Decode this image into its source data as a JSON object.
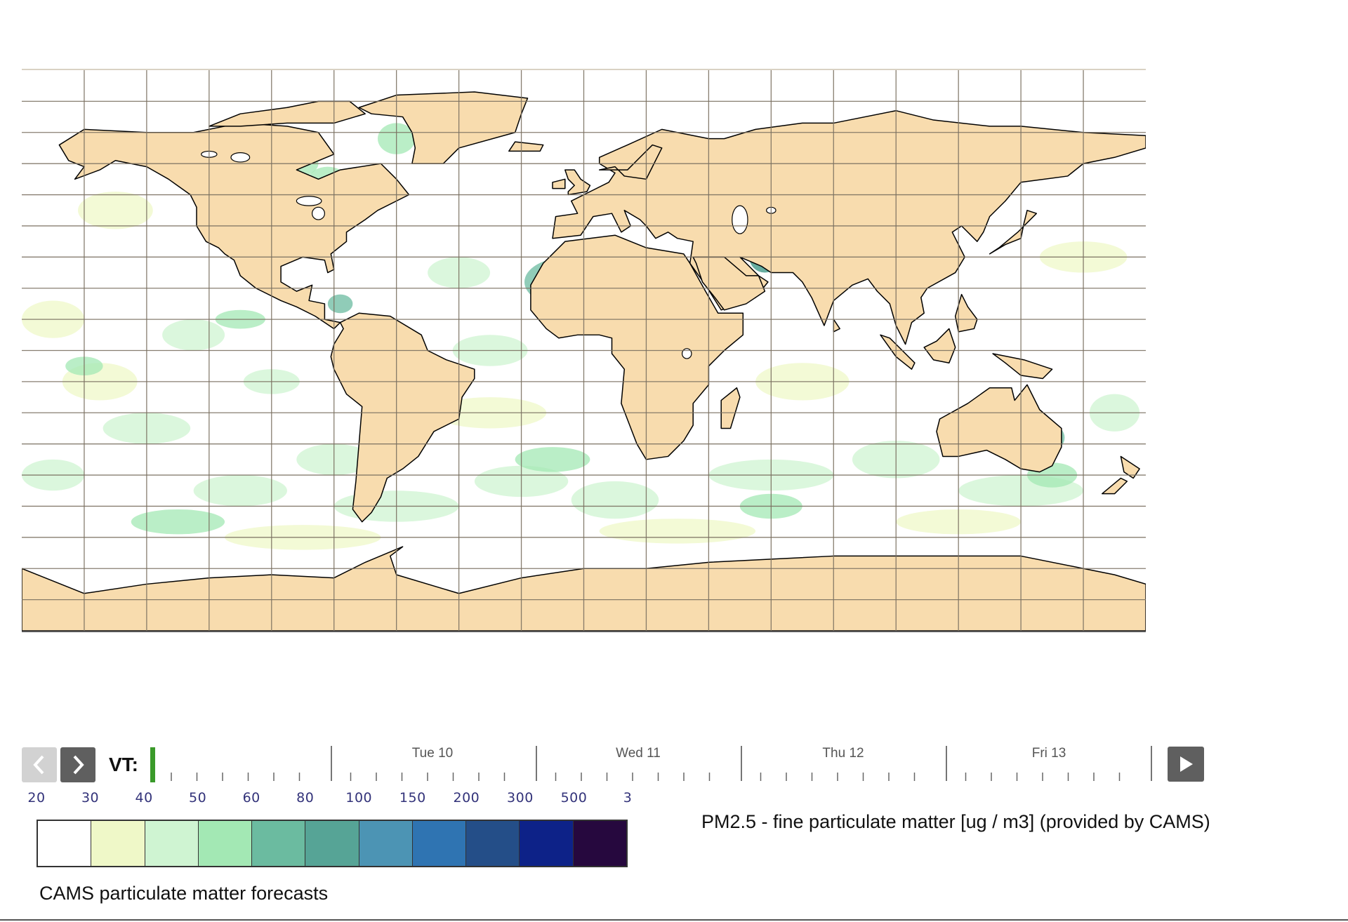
{
  "map": {
    "colors": {
      "land": "#f8dcae",
      "ocean": "#ffffff",
      "coastline": "#000000",
      "gridline": "#7a7060"
    },
    "grid_spacing_deg": 20
  },
  "time_slider": {
    "vt_label": "VT:",
    "days": [
      "Tue 10",
      "Wed 11",
      "Thu 12",
      "Fri 13"
    ],
    "current_marker_color": "#3a9a2a",
    "prev_icon": "chevron-left-icon",
    "next_icon": "chevron-right-icon",
    "play_icon": "play-icon"
  },
  "legend": {
    "labels": [
      "20",
      "30",
      "40",
      "50",
      "60",
      "80",
      "100",
      "150",
      "200",
      "300",
      "500",
      "3"
    ],
    "colors": [
      "#ffffff",
      "#eff8c8",
      "#cff4d2",
      "#a3e8b4",
      "#6bbba0",
      "#56a496",
      "#4c94b4",
      "#2f74b2",
      "#244e88",
      "#0d2288",
      "#26083e"
    ],
    "variable_title": "PM2.5 - fine particulate matter [ug / m3] (provided by CAMS)",
    "product_title": "CAMS particulate matter forecasts"
  }
}
